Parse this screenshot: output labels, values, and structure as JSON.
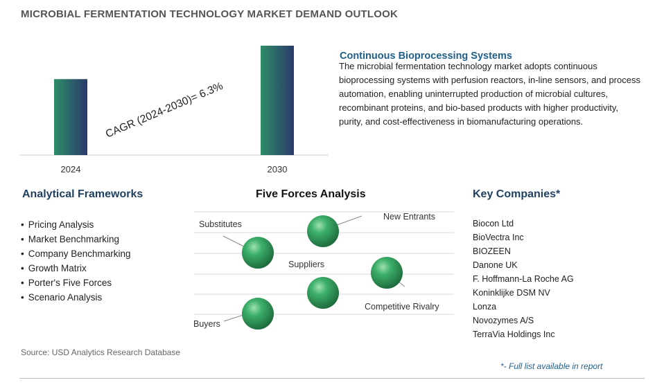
{
  "page": {
    "title": "MICROBIAL FERMENTATION TECHNOLOGY MARKET DEMAND OUTLOOK",
    "source": "Source: USD Analytics Research Database",
    "footnote": "*- Full list available in report"
  },
  "chart_data": {
    "type": "bar",
    "categories": [
      "2024",
      "2030"
    ],
    "values": [
      100,
      144
    ],
    "annotation": "CAGR (2024-2030)=  6.3%",
    "colors": {
      "bar_top": "#2a3a6a",
      "bar_bottom": "#2e8c68"
    }
  },
  "highlight": {
    "title": "Continuous Bioprocessing Systems",
    "body": "The microbial fermentation technology market adopts continuous bioprocessing systems with perfusion reactors, in-line sensors, and process automation, enabling uninterrupted production of microbial cultures, recombinant proteins, and bio-based products with higher productivity, purity, and cost-effectiveness in biomanufacturing operations."
  },
  "frameworks": {
    "title": "Analytical Frameworks",
    "items": [
      "Pricing Analysis",
      "Market Benchmarking",
      "Company Benchmarking",
      "Growth Matrix",
      "Porter's Five Forces",
      "Scenario Analysis"
    ]
  },
  "five_forces": {
    "title": "Five Forces Analysis",
    "labels": {
      "substitutes": "Substitutes",
      "new_entrants": "New Entrants",
      "suppliers": "Suppliers",
      "competitive_rivalry": "Competitive Rivalry",
      "buyers": "Buyers"
    },
    "sphere_color": "#2e9a5a"
  },
  "companies": {
    "title": "Key Companies*",
    "items": [
      "Biocon Ltd",
      "BioVectra Inc",
      "BIOZEEN",
      "Danone UK",
      "F. Hoffmann-La Roche AG",
      "Koninklijke DSM NV",
      "Lonza",
      "Novozymes A/S",
      "TerraVia Holdings Inc"
    ]
  }
}
